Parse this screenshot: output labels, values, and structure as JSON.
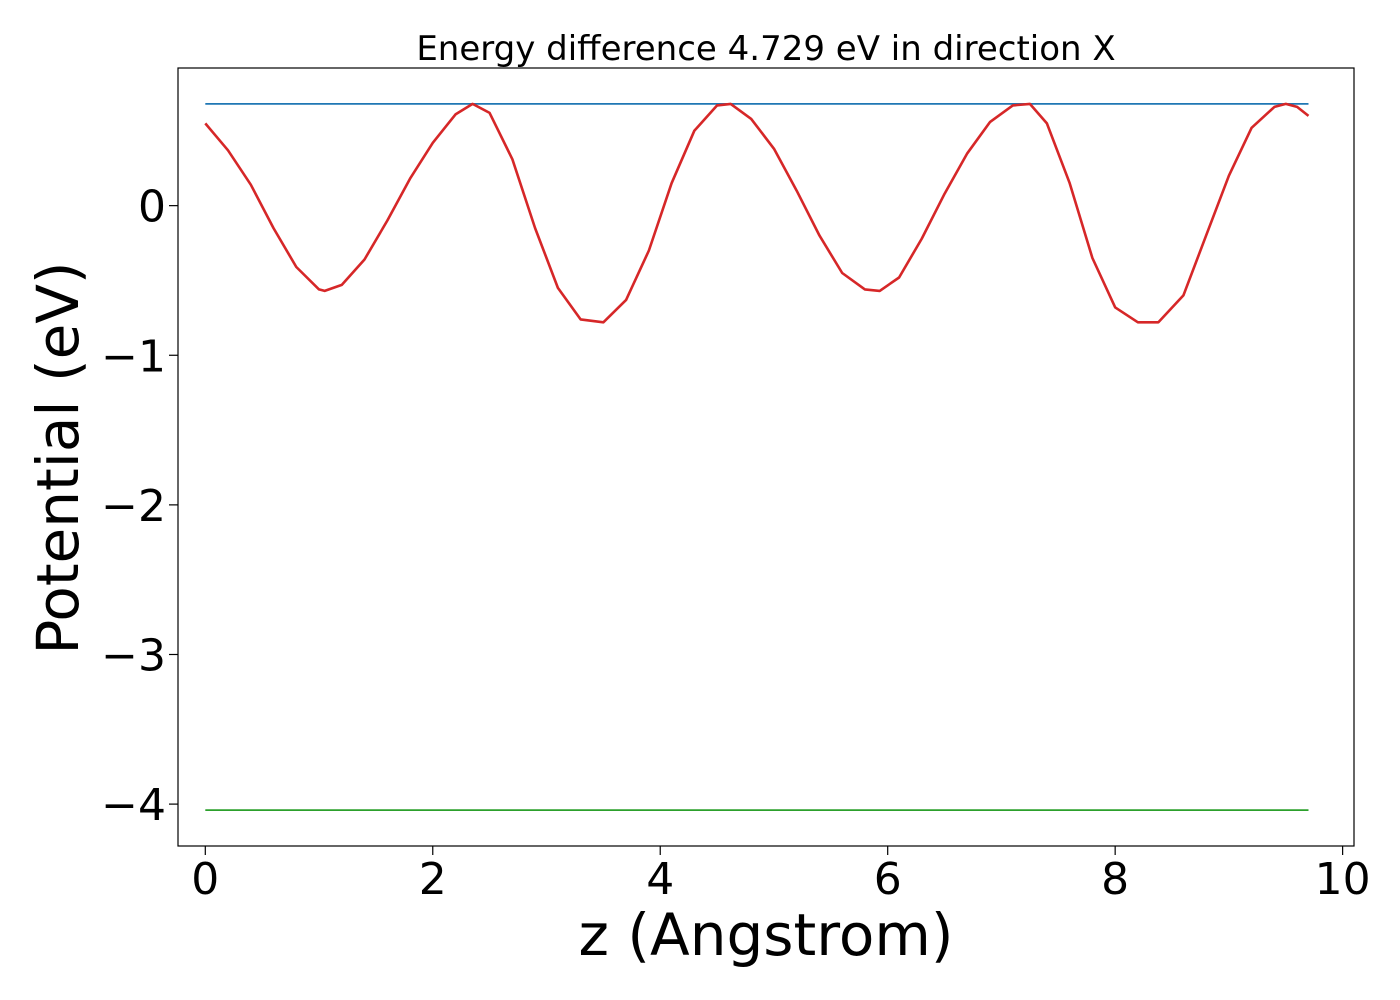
{
  "chart_data": {
    "type": "line",
    "title": "Energy difference 4.729 eV in direction X",
    "xlabel": "z (Angstrom)",
    "ylabel": "Potential (eV)",
    "xlim": [
      -0.24,
      10.1
    ],
    "ylim": [
      -4.28,
      0.92
    ],
    "xticks": [
      0,
      2,
      4,
      6,
      8,
      10
    ],
    "xtick_labels": [
      "0",
      "2",
      "4",
      "6",
      "8",
      "10"
    ],
    "yticks": [
      0,
      -1,
      -2,
      -3,
      -4
    ],
    "ytick_labels": [
      "0",
      "−1",
      "−2",
      "−3",
      "−4"
    ],
    "grid": false,
    "legend": "none",
    "series": [
      {
        "color": "#1f77b4",
        "x": [
          0,
          9.7
        ],
        "y": [
          0.68,
          0.68
        ]
      },
      {
        "color": "#2ca02c",
        "x": [
          0,
          9.7
        ],
        "y": [
          -4.04,
          -4.04
        ]
      },
      {
        "color": "#d62728",
        "x": [
          0.0,
          0.2,
          0.4,
          0.6,
          0.8,
          1.0,
          1.05,
          1.2,
          1.4,
          1.6,
          1.8,
          2.0,
          2.2,
          2.35,
          2.5,
          2.7,
          2.9,
          3.1,
          3.3,
          3.5,
          3.7,
          3.9,
          4.1,
          4.3,
          4.5,
          4.62,
          4.8,
          5.0,
          5.2,
          5.4,
          5.6,
          5.8,
          5.93,
          6.1,
          6.3,
          6.5,
          6.7,
          6.9,
          7.1,
          7.25,
          7.4,
          7.6,
          7.8,
          8.0,
          8.2,
          8.38,
          8.6,
          8.8,
          9.0,
          9.2,
          9.4,
          9.5,
          9.6,
          9.7
        ],
        "y": [
          0.55,
          0.37,
          0.14,
          -0.15,
          -0.41,
          -0.56,
          -0.57,
          -0.53,
          -0.36,
          -0.1,
          0.18,
          0.42,
          0.61,
          0.68,
          0.62,
          0.31,
          -0.15,
          -0.55,
          -0.76,
          -0.78,
          -0.63,
          -0.3,
          0.15,
          0.5,
          0.67,
          0.68,
          0.58,
          0.38,
          0.1,
          -0.2,
          -0.45,
          -0.56,
          -0.57,
          -0.48,
          -0.22,
          0.08,
          0.35,
          0.56,
          0.67,
          0.68,
          0.55,
          0.15,
          -0.35,
          -0.68,
          -0.78,
          -0.78,
          -0.6,
          -0.2,
          0.2,
          0.52,
          0.66,
          0.68,
          0.66,
          0.6
        ]
      }
    ]
  }
}
